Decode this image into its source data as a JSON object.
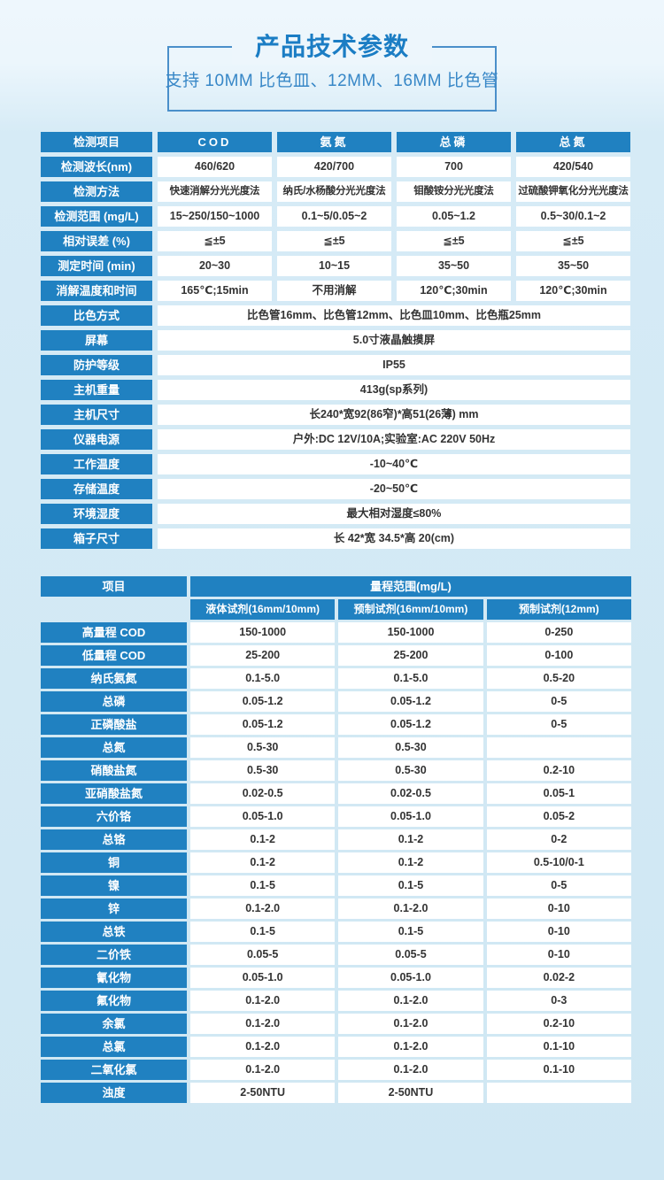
{
  "page": {
    "title": "产品技术参数",
    "subtitle": "支持 10MM 比色皿、12MM、16MM 比色管"
  },
  "colors": {
    "accent_blue": "#2081c1",
    "title_blue": "#1b7dc4",
    "background_light": "#eef7fd",
    "background_main": "#d2e9f4",
    "value_text": "#333333"
  },
  "spec_table": {
    "header": {
      "label": "检测项目",
      "columns": [
        "COD",
        "氨氮",
        "总磷",
        "总氮"
      ]
    },
    "param_rows": [
      {
        "label": "检测波长(nm)",
        "values": [
          "460/620",
          "420/700",
          "700",
          "420/540"
        ]
      },
      {
        "label": "检测方法",
        "small": true,
        "values": [
          "快速消解分光光度法",
          "纳氏/水杨酸分光光度法",
          "钼酸铵分光光度法",
          "过硫酸钾氧化分光光度法"
        ]
      },
      {
        "label": "检测范围 (mg/L)",
        "values": [
          "15~250/150~1000",
          "0.1~5/0.05~2",
          "0.05~1.2",
          "0.5~30/0.1~2"
        ]
      },
      {
        "label": "相对误差 (%)",
        "values": [
          "≦±5",
          "≦±5",
          "≦±5",
          "≦±5"
        ]
      },
      {
        "label": "测定时间 (min)",
        "values": [
          "20~30",
          "10~15",
          "35~50",
          "35~50"
        ]
      },
      {
        "label": "消解温度和时间",
        "values": [
          "165℃;15min",
          "不用消解",
          "120℃;30min",
          "120℃;30min"
        ]
      }
    ],
    "span_rows": [
      {
        "label": "比色方式",
        "value": "比色管16mm、比色管12mm、比色皿10mm、比色瓶25mm"
      },
      {
        "label": "屏幕",
        "value": "5.0寸液晶触摸屏"
      },
      {
        "label": "防护等级",
        "value": "IP55"
      },
      {
        "label": "主机重量",
        "value": "413g(sp系列)"
      },
      {
        "label": "主机尺寸",
        "value": "长240*宽92(86窄)*高51(26薄) mm"
      },
      {
        "label": "仪器电源",
        "value": "户外:DC 12V/10A;实验室:AC 220V 50Hz"
      },
      {
        "label": "工作温度",
        "value": "-10~40℃"
      },
      {
        "label": "存储温度",
        "value": "-20~50℃"
      },
      {
        "label": "环境湿度",
        "value": "最大相对湿度≤80%"
      },
      {
        "label": "箱子尺寸",
        "value": "长 42*宽 34.5*高 20(cm)"
      }
    ]
  },
  "range_table": {
    "item_header": "项目",
    "range_header": "量程范围(mg/L)",
    "sub_headers": [
      "液体试剂(16mm/10mm)",
      "预制试剂(16mm/10mm)",
      "预制试剂(12mm)"
    ],
    "rows": [
      {
        "label": "高量程 COD",
        "values": [
          "150-1000",
          "150-1000",
          "0-250"
        ]
      },
      {
        "label": "低量程 COD",
        "values": [
          "25-200",
          "25-200",
          "0-100"
        ]
      },
      {
        "label": "纳氏氨氮",
        "values": [
          "0.1-5.0",
          "0.1-5.0",
          "0.5-20"
        ]
      },
      {
        "label": "总磷",
        "values": [
          "0.05-1.2",
          "0.05-1.2",
          "0-5"
        ]
      },
      {
        "label": "正磷酸盐",
        "values": [
          "0.05-1.2",
          "0.05-1.2",
          "0-5"
        ]
      },
      {
        "label": "总氮",
        "values": [
          "0.5-30",
          "0.5-30",
          ""
        ]
      },
      {
        "label": "硝酸盐氮",
        "values": [
          "0.5-30",
          "0.5-30",
          "0.2-10"
        ]
      },
      {
        "label": "亚硝酸盐氮",
        "values": [
          "0.02-0.5",
          "0.02-0.5",
          "0.05-1"
        ]
      },
      {
        "label": "六价铬",
        "values": [
          "0.05-1.0",
          "0.05-1.0",
          "0.05-2"
        ]
      },
      {
        "label": "总铬",
        "values": [
          "0.1-2",
          "0.1-2",
          "0-2"
        ]
      },
      {
        "label": "铜",
        "values": [
          "0.1-2",
          "0.1-2",
          "0.5-10/0-1"
        ]
      },
      {
        "label": "镍",
        "values": [
          "0.1-5",
          "0.1-5",
          "0-5"
        ]
      },
      {
        "label": "锌",
        "values": [
          "0.1-2.0",
          "0.1-2.0",
          "0-10"
        ]
      },
      {
        "label": "总铁",
        "values": [
          "0.1-5",
          "0.1-5",
          "0-10"
        ]
      },
      {
        "label": "二价铁",
        "values": [
          "0.05-5",
          "0.05-5",
          "0-10"
        ]
      },
      {
        "label": "氰化物",
        "values": [
          "0.05-1.0",
          "0.05-1.0",
          "0.02-2"
        ]
      },
      {
        "label": "氟化物",
        "values": [
          "0.1-2.0",
          "0.1-2.0",
          "0-3"
        ]
      },
      {
        "label": "余氯",
        "values": [
          "0.1-2.0",
          "0.1-2.0",
          "0.2-10"
        ]
      },
      {
        "label": "总氯",
        "values": [
          "0.1-2.0",
          "0.1-2.0",
          "0.1-10"
        ]
      },
      {
        "label": "二氧化氯",
        "values": [
          "0.1-2.0",
          "0.1-2.0",
          "0.1-10"
        ]
      },
      {
        "label": "浊度",
        "values": [
          "2-50NTU",
          "2-50NTU",
          ""
        ]
      }
    ]
  }
}
